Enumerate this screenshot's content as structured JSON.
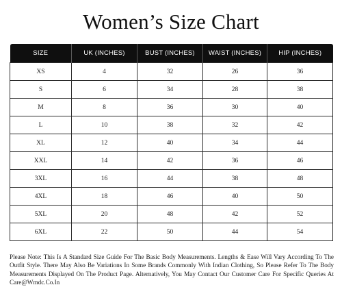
{
  "title": "Women’s Size Chart",
  "table": {
    "headers": [
      "SIZE",
      "UK (INCHES)",
      "BUST (INCHES)",
      "WAIST (INCHES)",
      "HIP (INCHES)"
    ],
    "rows": [
      [
        "XS",
        "4",
        "32",
        "26",
        "36"
      ],
      [
        "S",
        "6",
        "34",
        "28",
        "38"
      ],
      [
        "M",
        "8",
        "36",
        "30",
        "40"
      ],
      [
        "L",
        "10",
        "38",
        "32",
        "42"
      ],
      [
        "XL",
        "12",
        "40",
        "34",
        "44"
      ],
      [
        "XXL",
        "14",
        "42",
        "36",
        "46"
      ],
      [
        "3XL",
        "16",
        "44",
        "38",
        "48"
      ],
      [
        "4XL",
        "18",
        "46",
        "40",
        "50"
      ],
      [
        "5XL",
        "20",
        "48",
        "42",
        "52"
      ],
      [
        "6XL",
        "22",
        "50",
        "44",
        "54"
      ]
    ]
  },
  "note": "Please Note:  This Is A Standard Size Guide For The Basic Body Measurements. Lengths & Ease Will Vary According To The Outfit Style. There May Also Be Variations In Some Brands Commonly With Indian Clothing, So Please Refer To The Body Measurements Displayed On The Product Page. Alternatively, You May Contact Our Customer Care For Specific Queries At Care@Wmdc.Co.In"
}
